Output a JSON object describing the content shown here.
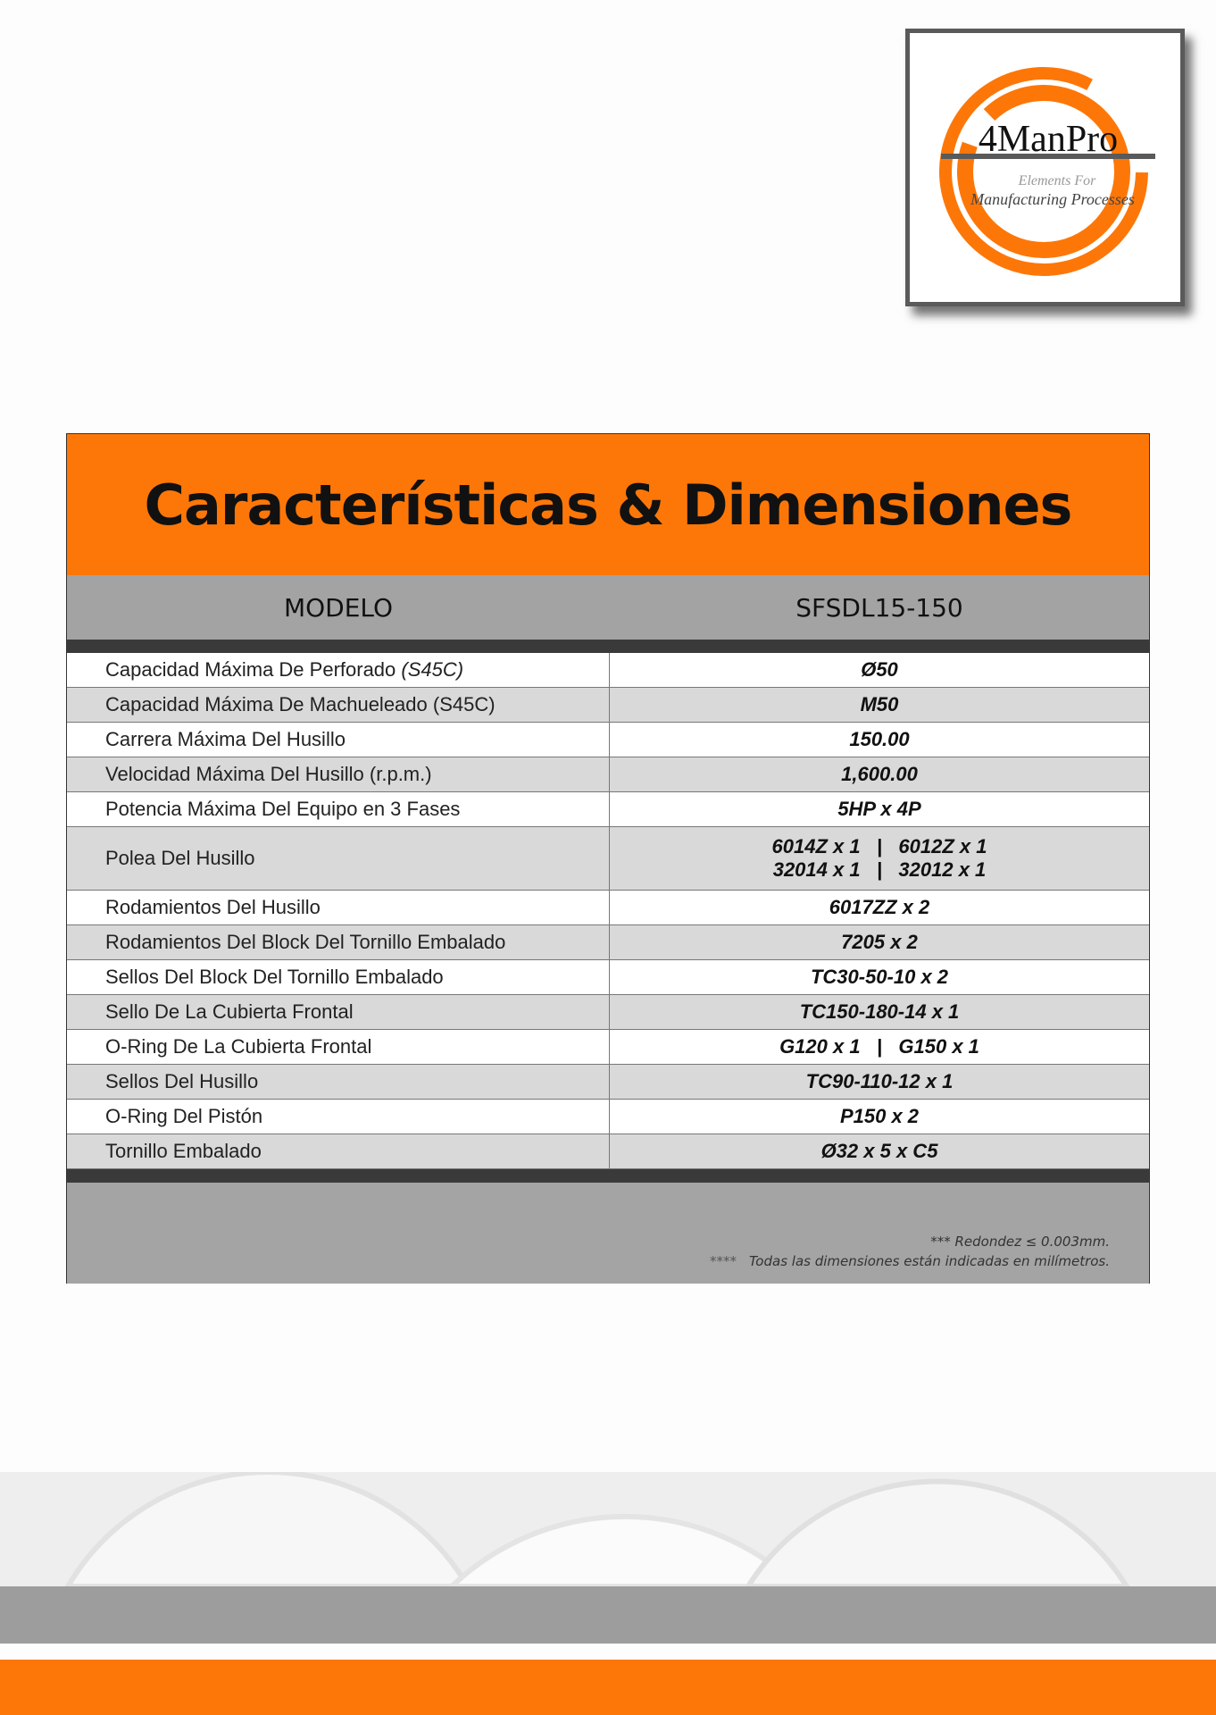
{
  "logo": {
    "name": "4ManPro",
    "tagline_1": "Elements For",
    "tagline_2": "Manufacturing Processes"
  },
  "title": "Características & Dimensiones",
  "header": {
    "col1": "MODELO",
    "col2": "SFSDL15-150"
  },
  "rows": [
    {
      "label": "Capacidad Máxima De Perforado ",
      "label_italic": "(S45C)",
      "value": "Ø50"
    },
    {
      "label": "Capacidad Máxima De Machueleado (S45C)",
      "value": "M50"
    },
    {
      "label": "Carrera Máxima Del Husillo",
      "value": "150.00"
    },
    {
      "label": "Velocidad Máxima Del Husillo (r.p.m.)",
      "value": "1,600.00"
    },
    {
      "label": "Potencia Máxima Del Equipo en 3 Fases",
      "value": "5HP x 4P"
    },
    {
      "label": "Polea Del Husillo",
      "value": "6014Z x 1   |   6012Z x 1",
      "value2": "32014 x 1   |   32012 x 1"
    },
    {
      "label": "Rodamientos Del Husillo",
      "value": "6017ZZ x 2"
    },
    {
      "label": "Rodamientos Del Block Del Tornillo Embalado",
      "value": "7205 x 2"
    },
    {
      "label": "Sellos Del Block Del Tornillo Embalado",
      "value": "TC30-50-10 x 2"
    },
    {
      "label": "Sello De La Cubierta Frontal",
      "value": "TC150-180-14 x 1"
    },
    {
      "label": "O-Ring De La Cubierta Frontal",
      "value": "G120 x 1   |   G150 x 1"
    },
    {
      "label": "Sellos Del Husillo",
      "value": "TC90-110-12 x 1"
    },
    {
      "label": "O-Ring Del Pistón",
      "value": "P150 x 2"
    },
    {
      "label": "Tornillo Embalado",
      "value": "Ø32 x 5 x C5"
    }
  ],
  "notes": {
    "note1": "*** Redondez ≤ 0.003mm.",
    "note2_stars": "****",
    "note2": "Todas las dimensiones están indicadas en milímetros."
  },
  "colors": {
    "orange": "#fd7708",
    "gray": "#a3a3a3",
    "dark": "#3a3a3a"
  }
}
